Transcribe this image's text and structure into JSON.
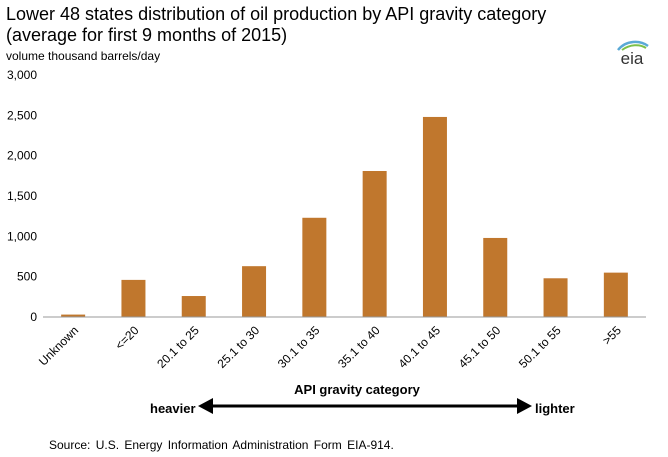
{
  "chart_data": {
    "type": "bar",
    "title_line1": "Lower 48 states distribution of oil production by API gravity category",
    "title_line2": "(average for first 9 months of 2015)",
    "ylabel": "volume  thousand barrels/day",
    "xlabel": "API gravity category",
    "categories": [
      "Unknown",
      "<=20",
      "20.1 to 25",
      "25.1 to 30",
      "30.1 to 35",
      "35.1 to 40",
      "40.1 to 45",
      "45.1 to 50",
      "50.1 to 55",
      ">55"
    ],
    "values": [
      30,
      460,
      260,
      630,
      1230,
      1810,
      2480,
      980,
      480,
      550
    ],
    "ylim": [
      0,
      3000
    ],
    "yticks": [
      0,
      500,
      1000,
      1500,
      2000,
      2500,
      3000
    ],
    "ytick_labels": [
      "0",
      "500",
      "1,000",
      "1,500",
      "2,000",
      "2,500",
      "3,000"
    ],
    "bar_color": "#C0772D",
    "grid": false,
    "annotation_left": "heavier",
    "annotation_right": "lighter"
  },
  "logo_text": "eia",
  "source": "Source:  U.S. Energy Information Administration Form EIA-914."
}
